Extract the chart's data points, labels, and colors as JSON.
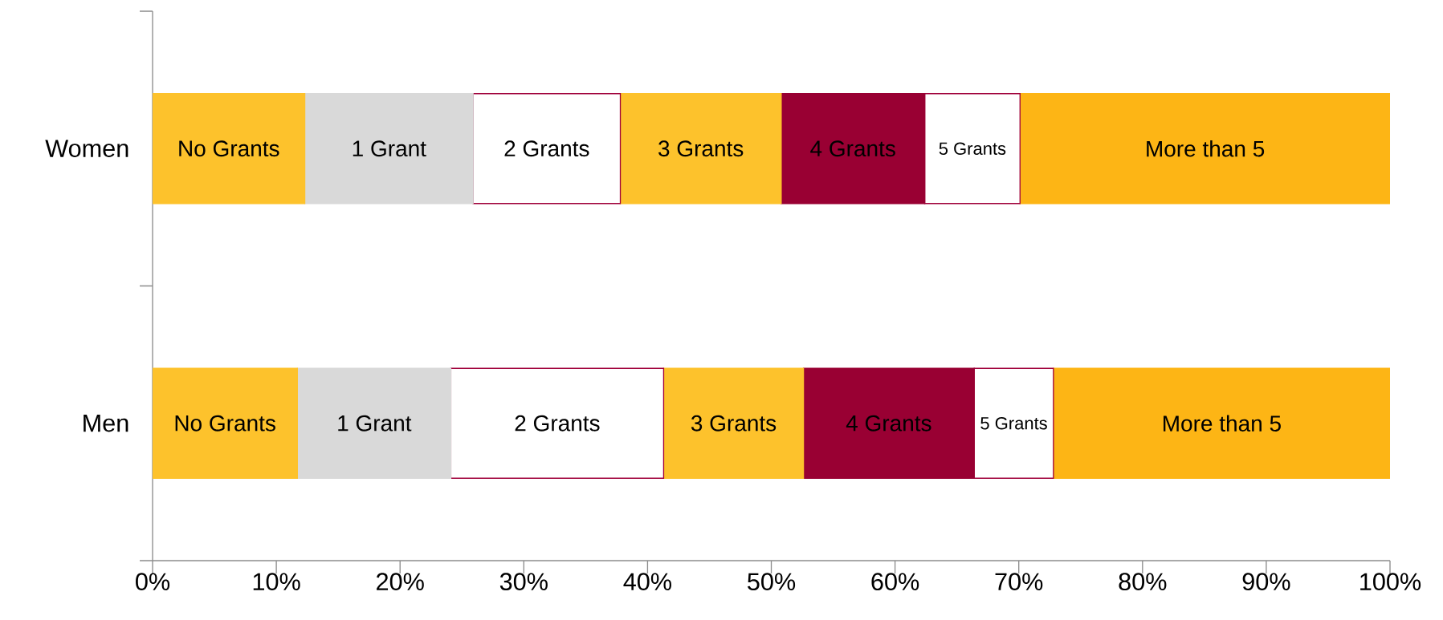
{
  "chart_data": {
    "type": "bar",
    "orientation": "horizontal",
    "stacked": true,
    "categories": [
      "Women",
      "Men"
    ],
    "series": [
      {
        "name": "No Grants",
        "color": "#fdc22c",
        "values": [
          12.3,
          11.7
        ]
      },
      {
        "name": "1 Grant",
        "color": "#d9d9d9",
        "values": [
          13.6,
          12.4
        ]
      },
      {
        "name": "2 Grants",
        "color": "#ffffff",
        "values": [
          11.9,
          17.2
        ]
      },
      {
        "name": "3 Grants",
        "color": "#fdc22c",
        "values": [
          13.0,
          11.3
        ]
      },
      {
        "name": "4 Grants",
        "color": "#990033",
        "values": [
          11.6,
          13.8
        ]
      },
      {
        "name": "5 Grants",
        "color": "#ffffff",
        "values": [
          7.7,
          6.4
        ]
      },
      {
        "name": "More than 5",
        "color": "#fdb515",
        "values": [
          29.9,
          27.2
        ]
      }
    ],
    "xlim": [
      0,
      100
    ],
    "xticks": [
      {
        "value": 0,
        "label": "0%"
      },
      {
        "value": 10,
        "label": "10%"
      },
      {
        "value": 20,
        "label": "20%"
      },
      {
        "value": 30,
        "label": "30%"
      },
      {
        "value": 40,
        "label": "40%"
      },
      {
        "value": 50,
        "label": "50%"
      },
      {
        "value": 60,
        "label": "60%"
      },
      {
        "value": 70,
        "label": "70%"
      },
      {
        "value": 80,
        "label": "80%"
      },
      {
        "value": 90,
        "label": "90%"
      },
      {
        "value": 100,
        "label": "100%"
      }
    ],
    "legend": false,
    "grid": false
  }
}
